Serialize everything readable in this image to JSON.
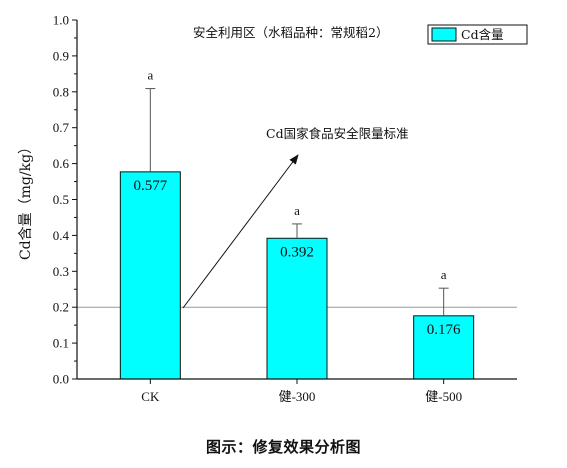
{
  "chart_data": {
    "type": "bar",
    "title": "安全利用区（水稻品种：常规稻2）",
    "ylabel": "Cd含量（mg/kg）",
    "xlabel": "",
    "categories": [
      "CK",
      "健-300",
      "健-500"
    ],
    "series": [
      {
        "name": "Cd含量",
        "color": "#00FFFF",
        "values": [
          0.577,
          0.392,
          0.176
        ],
        "errors": [
          0.232,
          0.04,
          0.077
        ],
        "value_labels": [
          "0.577",
          "0.392",
          "0.176"
        ],
        "significance": [
          "a",
          "a",
          "a"
        ]
      }
    ],
    "ylim": [
      0,
      1.0
    ],
    "yticks": [
      "0.0",
      "0.1",
      "0.2",
      "0.3",
      "0.4",
      "0.5",
      "0.6",
      "0.7",
      "0.8",
      "0.9",
      "1.0"
    ],
    "reference_line": {
      "y": 0.2,
      "label": "Cd国家食品安全限量标准"
    },
    "legend_position": "top-right",
    "grid": false
  },
  "caption": "图示：修复效果分析图"
}
